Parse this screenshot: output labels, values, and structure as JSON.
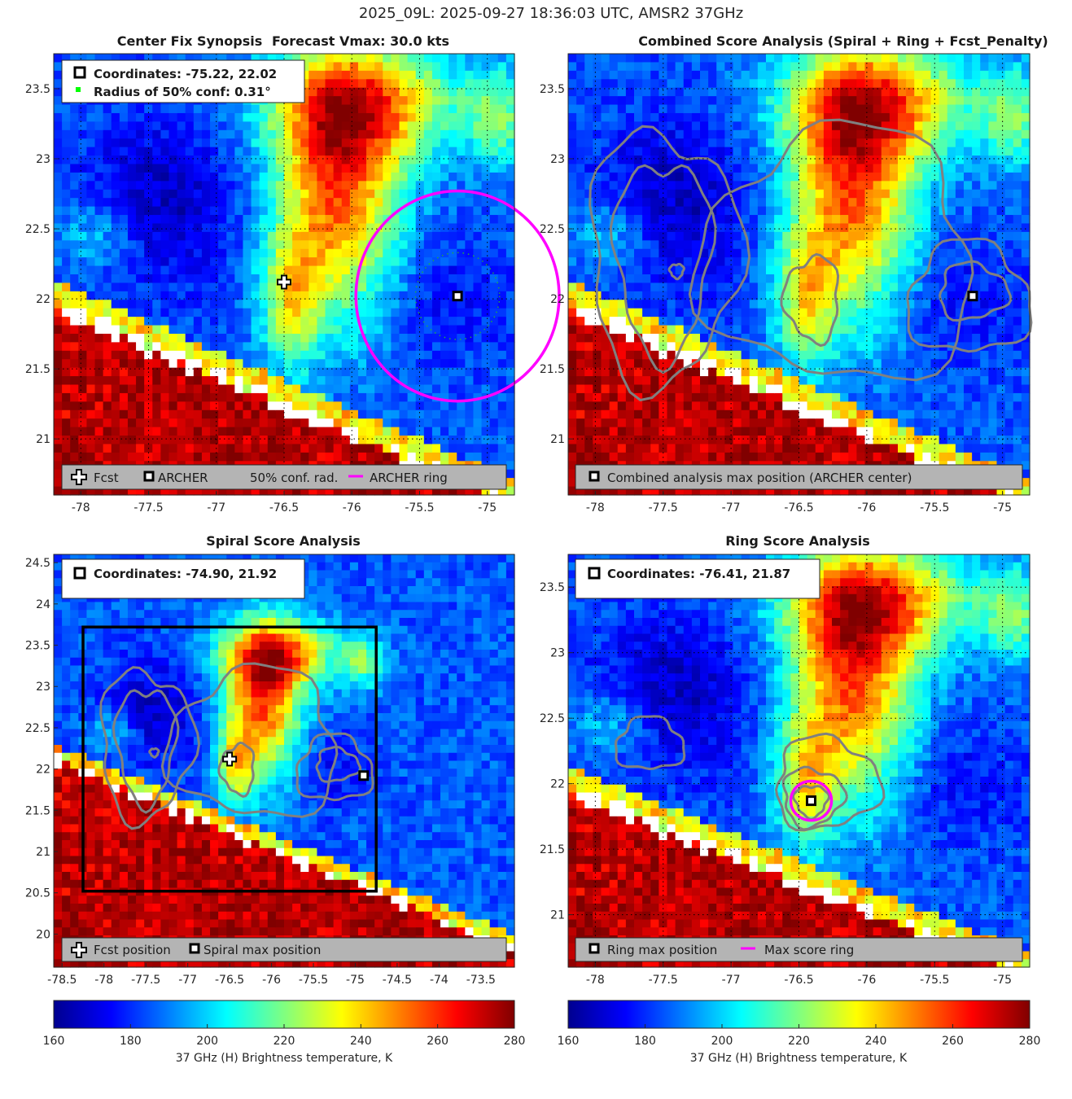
{
  "figure": {
    "title": "2025_09L: 2025-09-27 18:36:03 UTC, AMSR2 37GHz"
  },
  "colors": {
    "forecast_ring": "#ff00ff",
    "contour": "#808080",
    "grid": "#000000",
    "legend_bg": "#b4b4b4",
    "missing_data": "#ffffff"
  },
  "colorbar": {
    "ticks": [
      "160",
      "180",
      "200",
      "220",
      "240",
      "260",
      "280"
    ],
    "label": "37 GHz (H) Brightness temperature, K",
    "range": [
      160,
      280
    ],
    "colormap": "jet"
  },
  "panels": {
    "synopsis": {
      "title_left": "Center Fix Synopsis",
      "title_right": "Forecast Vmax: 30.0 kts",
      "info_line1": "Coordinates: -75.22, 22.02",
      "info_line2": "Radius of 50% conf: 0.31°",
      "legend": {
        "fcst": "Fcst",
        "archer": "ARCHER",
        "conf": "50% conf. rad.",
        "ring": "ARCHER ring"
      },
      "xticks": [
        "-78",
        "-77.5",
        "-77",
        "-76.5",
        "-76",
        "-75.5",
        "-75"
      ],
      "yticks": [
        "23.5",
        "23",
        "22.5",
        "22",
        "21.5",
        "21"
      ]
    },
    "combined": {
      "title": "Combined Score Analysis (Spiral + Ring + Fcst_Penalty)",
      "legend": {
        "max": "Combined analysis max position (ARCHER center)"
      },
      "xticks": [
        "-78",
        "-77.5",
        "-77",
        "-76.5",
        "-76",
        "-75.5",
        "-75"
      ],
      "yticks": [
        "23.5",
        "23",
        "22.5",
        "22",
        "21.5",
        "21"
      ]
    },
    "spiral": {
      "title": "Spiral Score Analysis",
      "info_line1": "Coordinates: -74.90, 21.92",
      "legend": {
        "fcst": "Fcst position",
        "max": "Spiral max position"
      },
      "xticks": [
        "-78.5",
        "-78",
        "-77.5",
        "-77",
        "-76.5",
        "-76",
        "-75.5",
        "-75",
        "-74.5",
        "-74",
        "-73.5"
      ],
      "yticks": [
        "24.5",
        "24",
        "23.5",
        "23",
        "22.5",
        "22",
        "21.5",
        "21",
        "20.5",
        "20"
      ]
    },
    "ring": {
      "title": "Ring Score Analysis",
      "info_line1": "Coordinates: -76.41, 21.87",
      "legend": {
        "max": "Ring max position",
        "ring": "Max score ring"
      },
      "xticks": [
        "-78",
        "-77.5",
        "-77",
        "-76.5",
        "-76",
        "-75.5",
        "-75"
      ],
      "yticks": [
        "23.5",
        "23",
        "22.5",
        "22",
        "21.5",
        "21"
      ]
    }
  },
  "chart_data": [
    {
      "type": "heatmap",
      "panel": "synopsis",
      "title": "Center Fix Synopsis     Forecast Vmax: 30.0 kts",
      "xlim": [
        -78.2,
        -74.8
      ],
      "ylim": [
        20.6,
        23.75
      ],
      "grid": true,
      "points": [
        {
          "name": "Fcst",
          "lon": -76.5,
          "lat": 22.12
        },
        {
          "name": "ARCHER",
          "lon": -75.22,
          "lat": 22.02
        }
      ],
      "circles": [
        {
          "name": "50% conf. rad.",
          "lon": -75.22,
          "lat": 22.02,
          "radius_deg": 0.31
        },
        {
          "name": "ARCHER ring",
          "lon": -75.22,
          "lat": 22.02,
          "radius_deg": 0.75
        }
      ]
    },
    {
      "type": "heatmap",
      "panel": "combined",
      "title": "Combined Score Analysis (Spiral + Ring + Fcst_Penalty)",
      "xlim": [
        -78.2,
        -74.8
      ],
      "ylim": [
        20.6,
        23.75
      ],
      "grid": true,
      "points": [
        {
          "name": "Combined analysis max position (ARCHER center)",
          "lon": -75.22,
          "lat": 22.02
        }
      ]
    },
    {
      "type": "heatmap",
      "panel": "spiral",
      "title": "Spiral Score Analysis",
      "xlim": [
        -78.6,
        -73.1
      ],
      "ylim": [
        19.6,
        24.6
      ],
      "grid": false,
      "points": [
        {
          "name": "Fcst position",
          "lon": -76.5,
          "lat": 22.12
        },
        {
          "name": "Spiral max position",
          "lon": -74.9,
          "lat": 21.92
        }
      ],
      "box": {
        "lon_min": -78.25,
        "lon_max": -74.75,
        "lat_min": 20.52,
        "lat_max": 23.72
      }
    },
    {
      "type": "heatmap",
      "panel": "ring",
      "title": "Ring Score Analysis",
      "xlim": [
        -78.2,
        -74.8
      ],
      "ylim": [
        20.6,
        23.75
      ],
      "grid": true,
      "points": [
        {
          "name": "Ring max position",
          "lon": -76.41,
          "lat": 21.87
        }
      ],
      "circles": [
        {
          "name": "Max score ring",
          "lon": -76.41,
          "lat": 21.87,
          "radius_deg": 0.15
        }
      ]
    }
  ]
}
